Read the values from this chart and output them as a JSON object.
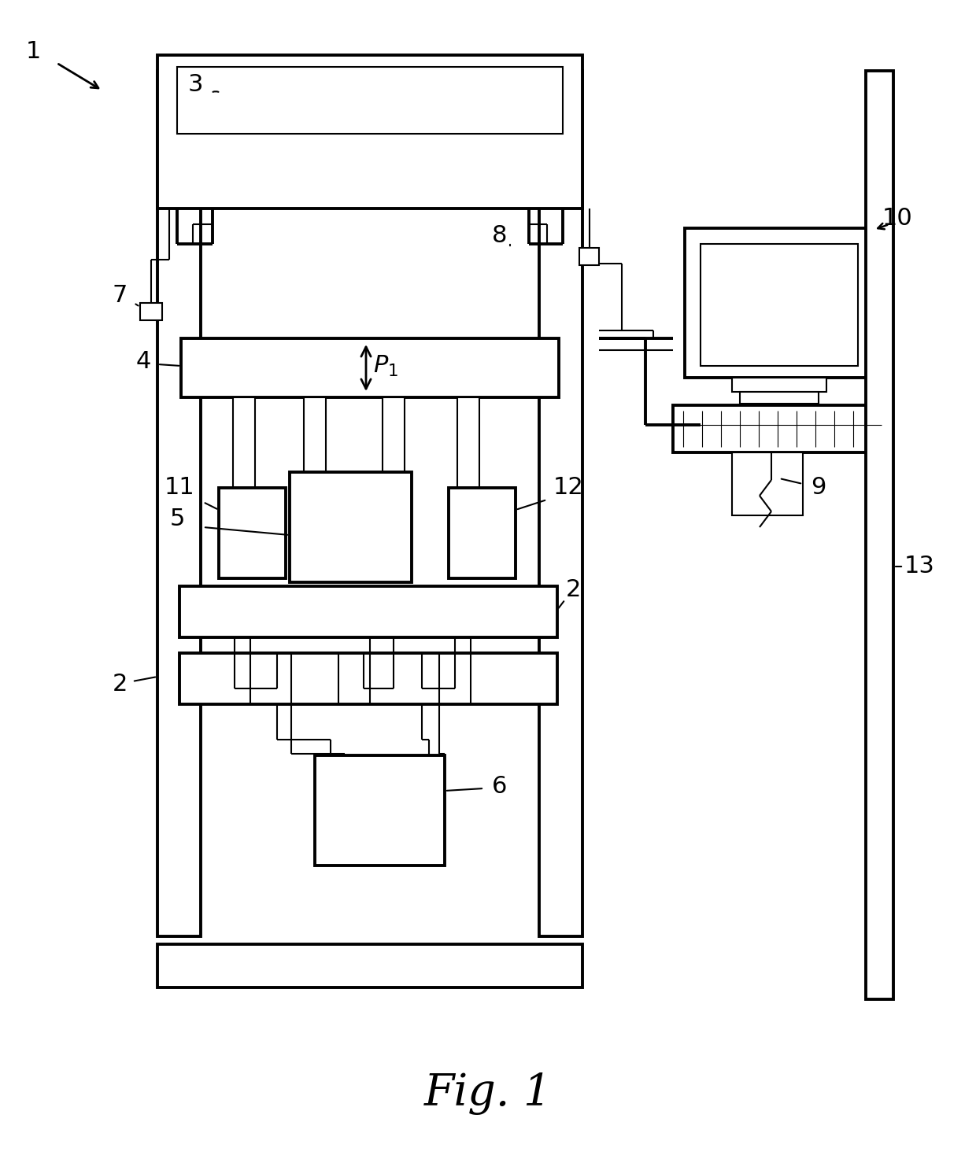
{
  "bg_color": "#ffffff",
  "lw": 2.8,
  "tlw": 1.5,
  "fig_width": 12.4,
  "fig_height": 14.73,
  "title": "Fig. 1"
}
